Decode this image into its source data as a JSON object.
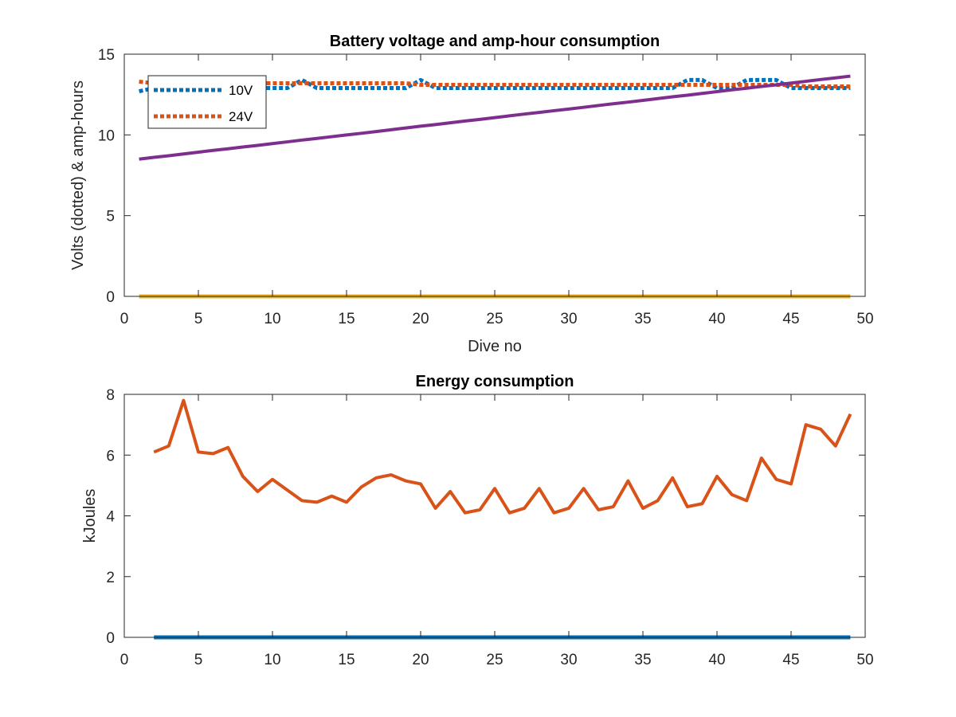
{
  "colors": {
    "v10": "#0072BD",
    "v24": "#D95319",
    "amp": "#7E2F8E",
    "zero": "#EDB120",
    "energy": "#D95319",
    "energy_zero": "#0072BD",
    "axis": "#262626"
  },
  "chart_data": [
    {
      "type": "line",
      "title": "Battery voltage and amp-hour consumption",
      "xlabel": "Dive no",
      "ylabel": "Volts (dotted) & amp-hours",
      "xlim": [
        0,
        50
      ],
      "ylim": [
        0,
        15
      ],
      "xticks": [
        0,
        5,
        10,
        15,
        20,
        25,
        30,
        35,
        40,
        45,
        50
      ],
      "yticks": [
        0,
        5,
        10,
        15
      ],
      "grid": false,
      "legend_position": "top-left",
      "x": [
        1,
        2,
        3,
        4,
        5,
        6,
        7,
        8,
        9,
        10,
        11,
        12,
        13,
        14,
        15,
        16,
        17,
        18,
        19,
        20,
        21,
        22,
        23,
        24,
        25,
        26,
        27,
        28,
        29,
        30,
        31,
        32,
        33,
        34,
        35,
        36,
        37,
        38,
        39,
        40,
        41,
        42,
        43,
        44,
        45,
        46,
        47,
        48,
        49
      ],
      "series": [
        {
          "name": "10V",
          "style": "dotted",
          "color_key": "v10",
          "values": [
            12.7,
            12.9,
            12.9,
            12.9,
            12.9,
            12.9,
            12.9,
            12.9,
            12.9,
            12.9,
            12.9,
            13.4,
            12.9,
            12.9,
            12.9,
            12.9,
            12.9,
            12.9,
            12.9,
            13.4,
            12.9,
            12.9,
            12.9,
            12.9,
            12.9,
            12.9,
            12.9,
            12.9,
            12.9,
            12.9,
            12.9,
            12.9,
            12.9,
            12.9,
            12.9,
            12.9,
            12.9,
            13.4,
            13.4,
            12.9,
            12.9,
            13.4,
            13.4,
            13.4,
            12.9,
            12.9,
            12.9,
            12.9,
            12.9
          ]
        },
        {
          "name": "24V",
          "style": "dotted",
          "color_key": "v24",
          "values": [
            13.3,
            13.2,
            13.2,
            13.2,
            13.2,
            13.2,
            13.2,
            13.2,
            13.2,
            13.2,
            13.2,
            13.2,
            13.2,
            13.2,
            13.2,
            13.2,
            13.2,
            13.2,
            13.2,
            13.1,
            13.1,
            13.1,
            13.1,
            13.1,
            13.1,
            13.1,
            13.1,
            13.1,
            13.1,
            13.1,
            13.1,
            13.1,
            13.1,
            13.1,
            13.1,
            13.1,
            13.1,
            13.1,
            13.1,
            13.1,
            13.1,
            13.1,
            13.1,
            13.1,
            13.1,
            13.0,
            13.0,
            13.0,
            13.0
          ]
        },
        {
          "style": "solid",
          "color_key": "amp",
          "values": [
            8.5,
            8.61,
            8.71,
            8.82,
            8.93,
            9.04,
            9.14,
            9.25,
            9.35,
            9.46,
            9.57,
            9.68,
            9.78,
            9.89,
            10.0,
            10.1,
            10.21,
            10.32,
            10.43,
            10.54,
            10.64,
            10.75,
            10.86,
            10.96,
            11.07,
            11.18,
            11.29,
            11.39,
            11.5,
            11.6,
            11.71,
            11.82,
            11.93,
            12.03,
            12.14,
            12.25,
            12.36,
            12.46,
            12.57,
            12.68,
            12.79,
            12.89,
            13.0,
            13.1,
            13.21,
            13.32,
            13.43,
            13.53,
            13.64
          ]
        },
        {
          "style": "solid",
          "color_key": "zero",
          "values": [
            0,
            0,
            0,
            0,
            0,
            0,
            0,
            0,
            0,
            0,
            0,
            0,
            0,
            0,
            0,
            0,
            0,
            0,
            0,
            0,
            0,
            0,
            0,
            0,
            0,
            0,
            0,
            0,
            0,
            0,
            0,
            0,
            0,
            0,
            0,
            0,
            0,
            0,
            0,
            0,
            0,
            0,
            0,
            0,
            0,
            0,
            0,
            0,
            0
          ]
        }
      ]
    },
    {
      "type": "line",
      "title": "Energy consumption",
      "xlabel": "",
      "ylabel": "kJoules",
      "xlim": [
        0,
        50
      ],
      "ylim": [
        0,
        8
      ],
      "xticks": [
        0,
        5,
        10,
        15,
        20,
        25,
        30,
        35,
        40,
        45,
        50
      ],
      "yticks": [
        0,
        2,
        4,
        6,
        8
      ],
      "grid": false,
      "x": [
        2,
        3,
        4,
        5,
        6,
        7,
        8,
        9,
        10,
        11,
        12,
        13,
        14,
        15,
        16,
        17,
        18,
        19,
        20,
        21,
        22,
        23,
        24,
        25,
        26,
        27,
        28,
        29,
        30,
        31,
        32,
        33,
        34,
        35,
        36,
        37,
        38,
        39,
        40,
        41,
        42,
        43,
        44,
        45,
        46,
        47,
        48,
        49
      ],
      "series": [
        {
          "style": "solid",
          "color_key": "energy",
          "values": [
            6.1,
            6.3,
            7.8,
            6.1,
            6.05,
            6.25,
            5.3,
            4.8,
            5.2,
            4.85,
            4.5,
            4.45,
            4.65,
            4.45,
            4.95,
            5.25,
            5.35,
            5.15,
            5.05,
            4.25,
            4.8,
            4.1,
            4.2,
            4.9,
            4.1,
            4.25,
            4.9,
            4.1,
            4.25,
            4.9,
            4.2,
            4.3,
            5.15,
            4.25,
            4.5,
            5.25,
            4.3,
            4.4,
            5.3,
            4.7,
            4.5,
            5.9,
            5.2,
            5.05,
            7.0,
            6.85,
            6.3,
            7.35
          ]
        },
        {
          "style": "solid",
          "color_key": "energy_zero",
          "values": [
            0,
            0,
            0,
            0,
            0,
            0,
            0,
            0,
            0,
            0,
            0,
            0,
            0,
            0,
            0,
            0,
            0,
            0,
            0,
            0,
            0,
            0,
            0,
            0,
            0,
            0,
            0,
            0,
            0,
            0,
            0,
            0,
            0,
            0,
            0,
            0,
            0,
            0,
            0,
            0,
            0,
            0,
            0,
            0,
            0,
            0,
            0,
            0
          ]
        }
      ]
    }
  ]
}
